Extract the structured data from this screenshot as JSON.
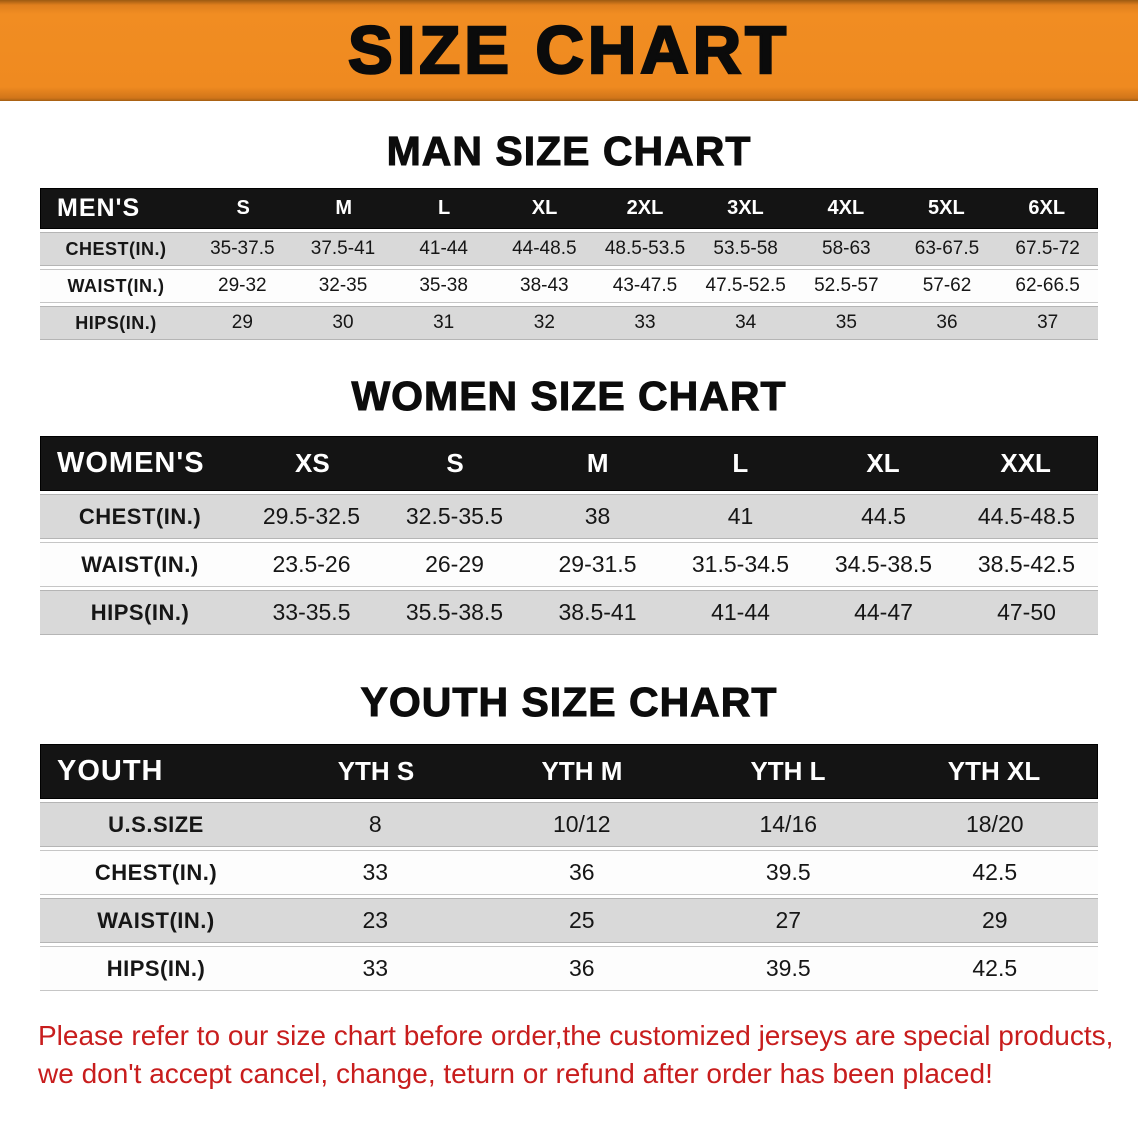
{
  "banner": {
    "title": "SIZE CHART"
  },
  "colors": {
    "banner_orange": "#ef8b22",
    "header_bg": "#141414",
    "row_gray": "#d9d9d9",
    "row_white": "#fdfdfd",
    "note_red": "#c81d1d",
    "text_black": "#121212"
  },
  "sections": [
    {
      "heading": "MAN SIZE CHART",
      "table": {
        "header_label": "MEN'S",
        "columns": [
          "S",
          "M",
          "L",
          "XL",
          "2XL",
          "3XL",
          "4XL",
          "5XL",
          "6XL"
        ],
        "rows": [
          {
            "label": "CHEST(IN.)",
            "values": [
              "35-37.5",
              "37.5-41",
              "41-44",
              "44-48.5",
              "48.5-53.5",
              "53.5-58",
              "58-63",
              "63-67.5",
              "67.5-72"
            ]
          },
          {
            "label": "WAIST(IN.)",
            "values": [
              "29-32",
              "32-35",
              "35-38",
              "38-43",
              "43-47.5",
              "47.5-52.5",
              "52.5-57",
              "57-62",
              "62-66.5"
            ]
          },
          {
            "label": "HIPS(IN.)",
            "values": [
              "29",
              "30",
              "31",
              "32",
              "33",
              "34",
              "35",
              "36",
              "37"
            ]
          }
        ]
      }
    },
    {
      "heading": "WOMEN SIZE CHART",
      "table": {
        "header_label": "WOMEN'S",
        "columns": [
          "XS",
          "S",
          "M",
          "L",
          "XL",
          "XXL"
        ],
        "rows": [
          {
            "label": "CHEST(IN.)",
            "values": [
              "29.5-32.5",
              "32.5-35.5",
              "38",
              "41",
              "44.5",
              "44.5-48.5"
            ]
          },
          {
            "label": "WAIST(IN.)",
            "values": [
              "23.5-26",
              "26-29",
              "29-31.5",
              "31.5-34.5",
              "34.5-38.5",
              "38.5-42.5"
            ]
          },
          {
            "label": "HIPS(IN.)",
            "values": [
              "33-35.5",
              "35.5-38.5",
              "38.5-41",
              "41-44",
              "44-47",
              "47-50"
            ]
          }
        ]
      }
    },
    {
      "heading": "YOUTH SIZE CHART",
      "table": {
        "header_label": "YOUTH",
        "columns": [
          "YTH S",
          "YTH M",
          "YTH L",
          "YTH XL"
        ],
        "rows": [
          {
            "label": "U.S.SIZE",
            "values": [
              "8",
              "10/12",
              "14/16",
              "18/20"
            ]
          },
          {
            "label": "CHEST(IN.)",
            "values": [
              "33",
              "36",
              "39.5",
              "42.5"
            ]
          },
          {
            "label": "WAIST(IN.)",
            "values": [
              "23",
              "25",
              "27",
              "29"
            ]
          },
          {
            "label": "HIPS(IN.)",
            "values": [
              "33",
              "36",
              "39.5",
              "42.5"
            ]
          }
        ]
      }
    }
  ],
  "notes": [
    "Please refer to our size chart before order,the customized jerseys are special products,",
    "we don't accept cancel, change, teturn or refund after order has been placed!"
  ]
}
